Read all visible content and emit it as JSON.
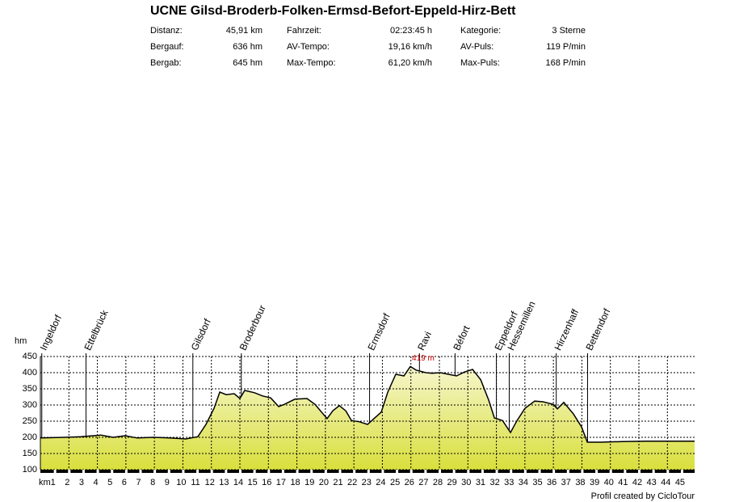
{
  "chart_data": {
    "type": "area",
    "title": "UCNE Gilsd-Broderb-Folken-Ermsd-Befort-Eppeld-Hirz-Bett",
    "stats": [
      [
        {
          "label": "Distanz:",
          "value": "45,91 km"
        },
        {
          "label": "Fahrzeit:",
          "value": "02:23:45 h"
        },
        {
          "label": "Kategorie:",
          "value": "3 Sterne"
        }
      ],
      [
        {
          "label": "Bergauf:",
          "value": "636 hm"
        },
        {
          "label": "AV-Tempo:",
          "value": "19,16 km/h"
        },
        {
          "label": "AV-Puls:",
          "value": "119 P/min"
        }
      ],
      [
        {
          "label": "Bergab:",
          "value": "645 hm"
        },
        {
          "label": "Max-Tempo:",
          "value": "61,20 km/h"
        },
        {
          "label": "Max-Puls:",
          "value": "168 P/min"
        }
      ]
    ],
    "x_label": "km",
    "y_label": "hm",
    "xlim": [
      0,
      45.91
    ],
    "ylim": [
      100,
      450
    ],
    "xticks": [
      1,
      2,
      3,
      4,
      5,
      6,
      7,
      8,
      9,
      10,
      11,
      12,
      13,
      14,
      15,
      16,
      17,
      18,
      19,
      20,
      21,
      22,
      23,
      24,
      25,
      26,
      27,
      28,
      29,
      30,
      31,
      32,
      33,
      34,
      35,
      36,
      37,
      38,
      39,
      40,
      41,
      42,
      43,
      44,
      45
    ],
    "yticks": [
      100,
      150,
      200,
      250,
      300,
      350,
      400,
      450
    ],
    "grid": true,
    "line_color": "#000000",
    "fill_gradient": [
      "#f6f6cc",
      "#d9df3c"
    ],
    "x": [
      0,
      1.7,
      2.83,
      4.25,
      5.1,
      5.95,
      6.8,
      7.94,
      9.07,
      10.2,
      11.05,
      11.62,
      12.19,
      12.59,
      13.04,
      13.6,
      14.0,
      14.34,
      15.02,
      15.59,
      16.16,
      16.72,
      17.12,
      17.86,
      18.71,
      19.27,
      19.73,
      20.12,
      20.52,
      20.98,
      21.43,
      21.83,
      22.39,
      22.96,
      23.41,
      23.92,
      24.38,
      24.94,
      25.51,
      25.96,
      26.36,
      27.04,
      27.49,
      28.06,
      28.63,
      29.2,
      29.76,
      30.33,
      30.9,
      31.46,
      31.86,
      32.43,
      32.99,
      33.45,
      34.01,
      34.69,
      35.26,
      35.99,
      36.28,
      36.73,
      37.41,
      37.98,
      38.38,
      39.4,
      40.82,
      42.52,
      44.22,
      45.91
    ],
    "values": [
      198,
      200,
      202,
      207,
      200,
      205,
      198,
      200,
      198,
      195,
      202,
      240,
      290,
      340,
      332,
      335,
      320,
      345,
      338,
      328,
      322,
      295,
      302,
      318,
      320,
      302,
      278,
      258,
      282,
      298,
      282,
      252,
      248,
      240,
      258,
      278,
      340,
      395,
      390,
      419,
      408,
      400,
      398,
      400,
      395,
      390,
      402,
      410,
      378,
      315,
      260,
      252,
      215,
      252,
      290,
      312,
      310,
      302,
      288,
      308,
      272,
      232,
      185,
      185,
      187,
      188,
      188,
      188
    ],
    "annotation": {
      "text": "419 m",
      "x": 25.96,
      "value": 419,
      "color": "#cc0000"
    },
    "waypoints": [
      {
        "name": "Ingeldorf",
        "km": 0.1
      },
      {
        "name": "Ettelbrück",
        "km": 3.2
      },
      {
        "name": "Gilsdorf",
        "km": 10.7
      },
      {
        "name": "Broderbour",
        "km": 14.1
      },
      {
        "name": "Ermsdorf",
        "km": 23.1
      },
      {
        "name": "Ravi",
        "km": 26.6
      },
      {
        "name": "Béfort",
        "km": 29.1
      },
      {
        "name": "Eppeldorf",
        "km": 32.0
      },
      {
        "name": "Hessemillen",
        "km": 32.9
      },
      {
        "name": "Hirzenhaff",
        "km": 36.2
      },
      {
        "name": "Bettendorf",
        "km": 38.4
      }
    ],
    "footer": "Profil created by CicloTour"
  }
}
